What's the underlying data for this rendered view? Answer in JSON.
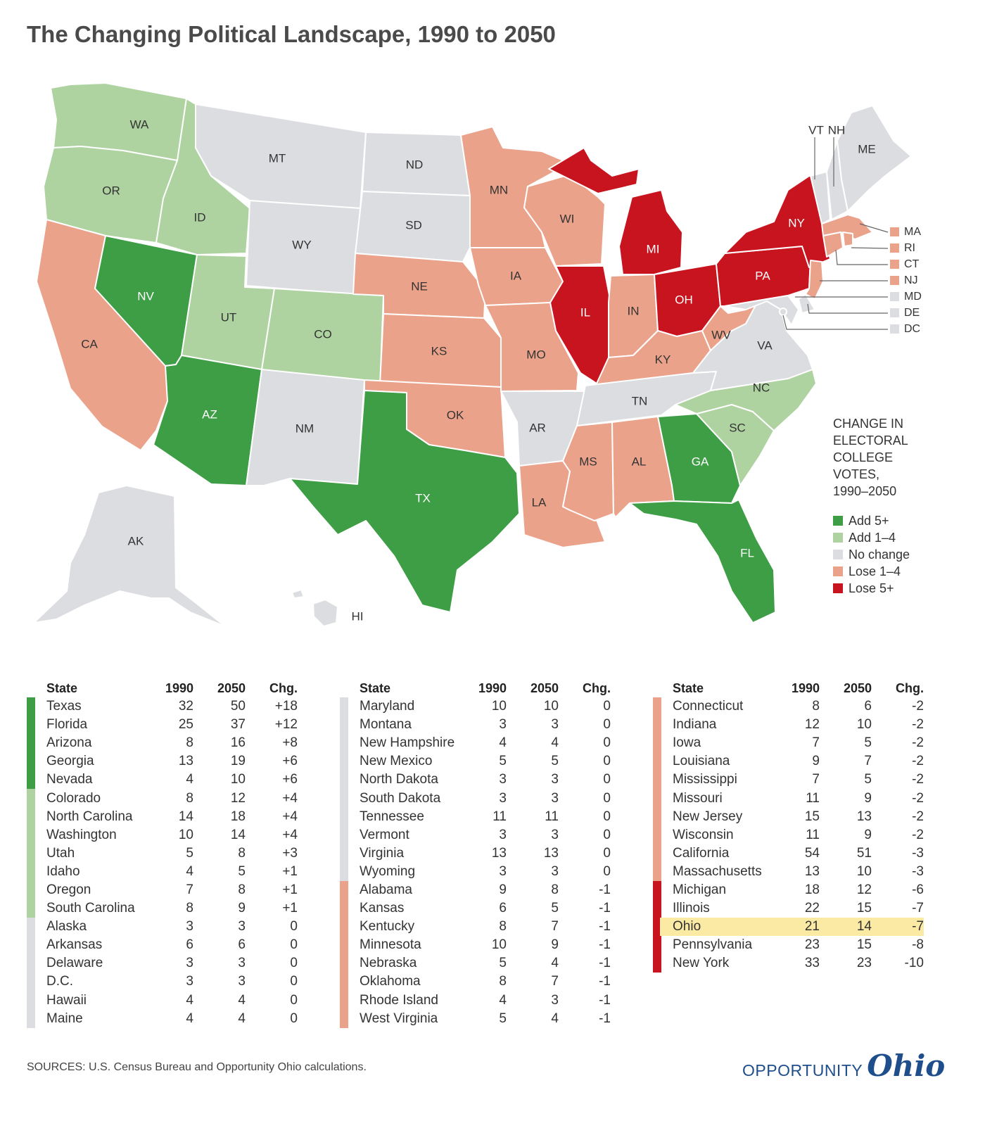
{
  "title": "The Changing Political Landscape, 1990 to 2050",
  "colors": {
    "add5": "#3e9e46",
    "add14": "#aed3a1",
    "nochange": "#dcdde0",
    "lose14": "#eba28a",
    "lose5": "#c8141f",
    "highlight": "#fbeaa3",
    "logo": "#1f4e8c"
  },
  "map": {
    "labels": {
      "WA": "WA",
      "OR": "OR",
      "CA": "CA",
      "ID": "ID",
      "NV": "NV",
      "MT": "MT",
      "WY": "WY",
      "UT": "UT",
      "AZ": "AZ",
      "CO": "CO",
      "NM": "NM",
      "ND": "ND",
      "SD": "SD",
      "NE": "NE",
      "KS": "KS",
      "OK": "OK",
      "TX": "TX",
      "MN": "MN",
      "IA": "IA",
      "MO": "MO",
      "AR": "AR",
      "LA": "LA",
      "WI": "WI",
      "IL": "IL",
      "MI": "MI",
      "IN": "IN",
      "OH": "OH",
      "KY": "KY",
      "TN": "TN",
      "MS": "MS",
      "AL": "AL",
      "GA": "GA",
      "FL": "FL",
      "SC": "SC",
      "NC": "NC",
      "VA": "VA",
      "WV": "WV",
      "PA": "PA",
      "NY": "NY",
      "ME": "ME",
      "VT": "VT",
      "NH": "NH",
      "MA": "MA",
      "RI": "RI",
      "CT": "CT",
      "NJ": "NJ",
      "MD": "MD",
      "DE": "DE",
      "DC": "DC",
      "AK": "AK",
      "HI": "HI"
    }
  },
  "legend": {
    "title": "CHANGE IN\nELECTORAL\nCOLLEGE\nVOTES,\n1990–2050",
    "items": [
      {
        "label": "Add 5+",
        "color": "#3e9e46"
      },
      {
        "label": "Add 1–4",
        "color": "#aed3a1"
      },
      {
        "label": "No change",
        "color": "#dcdde0"
      },
      {
        "label": "Lose 1–4",
        "color": "#eba28a"
      },
      {
        "label": "Lose 5+",
        "color": "#c8141f"
      }
    ]
  },
  "table_headers": {
    "state": "State",
    "y1990": "1990",
    "y2050": "2050",
    "chg": "Chg."
  },
  "tables": [
    [
      {
        "state": "Texas",
        "v1990": "32",
        "v2050": "50",
        "chg": "+18",
        "cat": "add5"
      },
      {
        "state": "Florida",
        "v1990": "25",
        "v2050": "37",
        "chg": "+12",
        "cat": "add5"
      },
      {
        "state": "Arizona",
        "v1990": "8",
        "v2050": "16",
        "chg": "+8",
        "cat": "add5"
      },
      {
        "state": "Georgia",
        "v1990": "13",
        "v2050": "19",
        "chg": "+6",
        "cat": "add5"
      },
      {
        "state": "Nevada",
        "v1990": "4",
        "v2050": "10",
        "chg": "+6",
        "cat": "add5"
      },
      {
        "state": "Colorado",
        "v1990": "8",
        "v2050": "12",
        "chg": "+4",
        "cat": "add14"
      },
      {
        "state": "North Carolina",
        "v1990": "14",
        "v2050": "18",
        "chg": "+4",
        "cat": "add14"
      },
      {
        "state": "Washington",
        "v1990": "10",
        "v2050": "14",
        "chg": "+4",
        "cat": "add14"
      },
      {
        "state": "Utah",
        "v1990": "5",
        "v2050": "8",
        "chg": "+3",
        "cat": "add14"
      },
      {
        "state": "Idaho",
        "v1990": "4",
        "v2050": "5",
        "chg": "+1",
        "cat": "add14"
      },
      {
        "state": "Oregon",
        "v1990": "7",
        "v2050": "8",
        "chg": "+1",
        "cat": "add14"
      },
      {
        "state": "South Carolina",
        "v1990": "8",
        "v2050": "9",
        "chg": "+1",
        "cat": "add14"
      },
      {
        "state": "Alaska",
        "v1990": "3",
        "v2050": "3",
        "chg": "0",
        "cat": "nochange"
      },
      {
        "state": "Arkansas",
        "v1990": "6",
        "v2050": "6",
        "chg": "0",
        "cat": "nochange"
      },
      {
        "state": "Delaware",
        "v1990": "3",
        "v2050": "3",
        "chg": "0",
        "cat": "nochange"
      },
      {
        "state": "D.C.",
        "v1990": "3",
        "v2050": "3",
        "chg": "0",
        "cat": "nochange"
      },
      {
        "state": "Hawaii",
        "v1990": "4",
        "v2050": "4",
        "chg": "0",
        "cat": "nochange"
      },
      {
        "state": "Maine",
        "v1990": "4",
        "v2050": "4",
        "chg": "0",
        "cat": "nochange"
      }
    ],
    [
      {
        "state": "Maryland",
        "v1990": "10",
        "v2050": "10",
        "chg": "0",
        "cat": "nochange"
      },
      {
        "state": "Montana",
        "v1990": "3",
        "v2050": "3",
        "chg": "0",
        "cat": "nochange"
      },
      {
        "state": "New Hampshire",
        "v1990": "4",
        "v2050": "4",
        "chg": "0",
        "cat": "nochange"
      },
      {
        "state": "New Mexico",
        "v1990": "5",
        "v2050": "5",
        "chg": "0",
        "cat": "nochange"
      },
      {
        "state": "North Dakota",
        "v1990": "3",
        "v2050": "3",
        "chg": "0",
        "cat": "nochange"
      },
      {
        "state": "South Dakota",
        "v1990": "3",
        "v2050": "3",
        "chg": "0",
        "cat": "nochange"
      },
      {
        "state": "Tennessee",
        "v1990": "11",
        "v2050": "11",
        "chg": "0",
        "cat": "nochange"
      },
      {
        "state": "Vermont",
        "v1990": "3",
        "v2050": "3",
        "chg": "0",
        "cat": "nochange"
      },
      {
        "state": "Virginia",
        "v1990": "13",
        "v2050": "13",
        "chg": "0",
        "cat": "nochange"
      },
      {
        "state": "Wyoming",
        "v1990": "3",
        "v2050": "3",
        "chg": "0",
        "cat": "nochange"
      },
      {
        "state": "Alabama",
        "v1990": "9",
        "v2050": "8",
        "chg": "-1",
        "cat": "lose14"
      },
      {
        "state": "Kansas",
        "v1990": "6",
        "v2050": "5",
        "chg": "-1",
        "cat": "lose14"
      },
      {
        "state": "Kentucky",
        "v1990": "8",
        "v2050": "7",
        "chg": "-1",
        "cat": "lose14"
      },
      {
        "state": "Minnesota",
        "v1990": "10",
        "v2050": "9",
        "chg": "-1",
        "cat": "lose14"
      },
      {
        "state": "Nebraska",
        "v1990": "5",
        "v2050": "4",
        "chg": "-1",
        "cat": "lose14"
      },
      {
        "state": "Oklahoma",
        "v1990": "8",
        "v2050": "7",
        "chg": "-1",
        "cat": "lose14"
      },
      {
        "state": "Rhode Island",
        "v1990": "4",
        "v2050": "3",
        "chg": "-1",
        "cat": "lose14"
      },
      {
        "state": "West Virginia",
        "v1990": "5",
        "v2050": "4",
        "chg": "-1",
        "cat": "lose14"
      }
    ],
    [
      {
        "state": "Connecticut",
        "v1990": "8",
        "v2050": "6",
        "chg": "-2",
        "cat": "lose14"
      },
      {
        "state": "Indiana",
        "v1990": "12",
        "v2050": "10",
        "chg": "-2",
        "cat": "lose14"
      },
      {
        "state": "Iowa",
        "v1990": "7",
        "v2050": "5",
        "chg": "-2",
        "cat": "lose14"
      },
      {
        "state": "Louisiana",
        "v1990": "9",
        "v2050": "7",
        "chg": "-2",
        "cat": "lose14"
      },
      {
        "state": "Mississippi",
        "v1990": "7",
        "v2050": "5",
        "chg": "-2",
        "cat": "lose14"
      },
      {
        "state": "Missouri",
        "v1990": "11",
        "v2050": "9",
        "chg": "-2",
        "cat": "lose14"
      },
      {
        "state": "New Jersey",
        "v1990": "15",
        "v2050": "13",
        "chg": "-2",
        "cat": "lose14"
      },
      {
        "state": "Wisconsin",
        "v1990": "11",
        "v2050": "9",
        "chg": "-2",
        "cat": "lose14"
      },
      {
        "state": "California",
        "v1990": "54",
        "v2050": "51",
        "chg": "-3",
        "cat": "lose14"
      },
      {
        "state": "Massachusetts",
        "v1990": "13",
        "v2050": "10",
        "chg": "-3",
        "cat": "lose14"
      },
      {
        "state": "Michigan",
        "v1990": "18",
        "v2050": "12",
        "chg": "-6",
        "cat": "lose5"
      },
      {
        "state": "Illinois",
        "v1990": "22",
        "v2050": "15",
        "chg": "-7",
        "cat": "lose5"
      },
      {
        "state": "Ohio",
        "v1990": "21",
        "v2050": "14",
        "chg": "-7",
        "cat": "lose5",
        "highlight": true
      },
      {
        "state": "Pennsylvania",
        "v1990": "23",
        "v2050": "15",
        "chg": "-8",
        "cat": "lose5"
      },
      {
        "state": "New York",
        "v1990": "33",
        "v2050": "23",
        "chg": "-10",
        "cat": "lose5"
      }
    ]
  ],
  "sources": "SOURCES: U.S. Census Bureau and Opportunity Ohio calculations.",
  "logo": {
    "word1": "OPPORTUNITY",
    "word2": "Ohio"
  }
}
